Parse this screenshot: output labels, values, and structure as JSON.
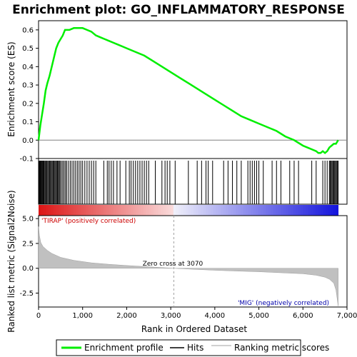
{
  "chart_data": {
    "type": "line",
    "title": "Enrichment plot: GO_INFLAMMATORY_RESPONSE",
    "top_panel": {
      "ylabel": "Enrichment score (ES)",
      "ylim": [
        -0.1,
        0.65
      ],
      "yticks": [
        -0.1,
        0.0,
        0.1,
        0.2,
        0.3,
        0.4,
        0.5,
        0.6
      ],
      "ytick_labels": [
        "-0.1",
        "0.0",
        "0.1",
        "0.2",
        "0.3",
        "0.4",
        "0.5",
        "0.6"
      ],
      "series": [
        {
          "name": "Enrichment profile",
          "color": "#00ee00",
          "x": [
            0,
            40,
            80,
            120,
            160,
            200,
            250,
            300,
            350,
            400,
            450,
            500,
            550,
            600,
            650,
            700,
            800,
            900,
            1000,
            1100,
            1200,
            1300,
            1400,
            1500,
            1600,
            1700,
            1800,
            1900,
            2000,
            2200,
            2400,
            2600,
            2800,
            3000,
            3200,
            3400,
            3600,
            3800,
            4000,
            4200,
            4400,
            4600,
            4800,
            5000,
            5200,
            5400,
            5600,
            5800,
            6000,
            6100,
            6200,
            6300,
            6350,
            6400,
            6450,
            6500,
            6550,
            6600,
            6650,
            6700,
            6750,
            6800
          ],
          "y": [
            0.0,
            0.08,
            0.14,
            0.2,
            0.27,
            0.31,
            0.35,
            0.4,
            0.45,
            0.5,
            0.53,
            0.55,
            0.57,
            0.6,
            0.6,
            0.6,
            0.61,
            0.61,
            0.61,
            0.6,
            0.59,
            0.57,
            0.56,
            0.55,
            0.54,
            0.53,
            0.52,
            0.51,
            0.5,
            0.48,
            0.46,
            0.43,
            0.4,
            0.37,
            0.34,
            0.31,
            0.28,
            0.25,
            0.22,
            0.19,
            0.16,
            0.13,
            0.11,
            0.09,
            0.07,
            0.05,
            0.02,
            0.0,
            -0.03,
            -0.04,
            -0.05,
            -0.06,
            -0.07,
            -0.07,
            -0.06,
            -0.07,
            -0.06,
            -0.04,
            -0.03,
            -0.02,
            -0.02,
            0.0
          ]
        }
      ]
    },
    "hits_panel": {
      "legend_name": "Hits",
      "hit_positions": [
        10,
        25,
        40,
        55,
        70,
        85,
        100,
        115,
        130,
        150,
        170,
        190,
        210,
        230,
        250,
        270,
        290,
        310,
        330,
        350,
        370,
        390,
        410,
        430,
        450,
        470,
        490,
        520,
        550,
        580,
        610,
        640,
        680,
        720,
        760,
        800,
        840,
        880,
        920,
        960,
        1000,
        1050,
        1100,
        1150,
        1200,
        1250,
        1300,
        1480,
        1560,
        1600,
        1650,
        1700,
        1780,
        1850,
        1980,
        2060,
        2100,
        2150,
        2200,
        2250,
        2300,
        2350,
        2400,
        2450,
        2500,
        2650,
        2800,
        2870,
        2920,
        2980,
        3100,
        3400,
        3600,
        3700,
        3800,
        3850,
        3950,
        4200,
        4300,
        4400,
        4500,
        4600,
        4750,
        4800,
        4850,
        4900,
        4950,
        5000,
        5100,
        5300,
        5400,
        5500,
        5700,
        5800,
        5900,
        6200,
        6300,
        6450,
        6500,
        6550,
        6600,
        6620,
        6640,
        6660,
        6680,
        6700,
        6720,
        6740,
        6760,
        6780,
        6800
      ]
    },
    "metric_panel": {
      "ylabel": "Ranked list metric (Signal2Noise)",
      "legend_name": "Ranking metric scores",
      "ylim": [
        -3.9,
        5.3
      ],
      "yticks": [
        -2.5,
        0.0,
        2.5,
        5.0
      ],
      "ytick_labels": [
        "-2.5",
        "0.0",
        "2.5",
        "5.0"
      ],
      "x": [
        0,
        20,
        50,
        100,
        200,
        300,
        500,
        800,
        1200,
        1600,
        2000,
        2500,
        3070,
        3500,
        4000,
        4500,
        5000,
        5500,
        6000,
        6300,
        6500,
        6600,
        6700,
        6750,
        6800
      ],
      "y": [
        4.2,
        3.3,
        2.6,
        2.2,
        1.8,
        1.5,
        1.1,
        0.8,
        0.55,
        0.4,
        0.28,
        0.15,
        0.0,
        -0.1,
        -0.2,
        -0.28,
        -0.35,
        -0.45,
        -0.55,
        -0.7,
        -0.9,
        -1.1,
        -1.5,
        -2.2,
        -3.8
      ],
      "zero_cross_label": "Zero cross at 3070",
      "zero_cross": 3070,
      "pos_label": "'TIRAP' (positively correlated)",
      "neg_label": "'MIG' (negatively correlated)"
    },
    "x_axis": {
      "xlabel": "Rank in Ordered Dataset",
      "xlim": [
        0,
        7000
      ],
      "xticks": [
        0,
        1000,
        2000,
        3000,
        4000,
        5000,
        6000,
        7000
      ],
      "xtick_labels": [
        "0",
        "1,000",
        "2,000",
        "3,000",
        "4,000",
        "5,000",
        "6,000",
        "7,000"
      ]
    },
    "legend": {
      "placement": "bottom",
      "items": [
        "Enrichment profile",
        "Hits",
        "Ranking metric scores"
      ]
    },
    "colors": {
      "profile": "#00ee00",
      "positive_label": "#cc0000",
      "negative_label": "#0000aa",
      "metric_fill": "#c0c0c0",
      "heat_red": "#dd0000",
      "heat_blue": "#2222dd"
    }
  }
}
